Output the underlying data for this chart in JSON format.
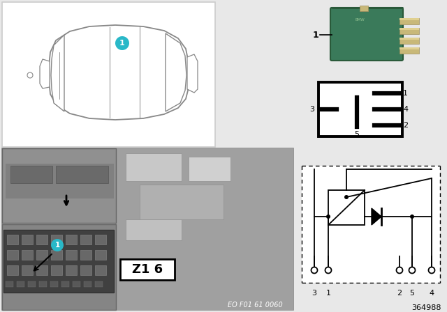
{
  "bg_color": "#e8e8e8",
  "part_number": "364988",
  "eo_number": "EO F01 61 0060",
  "teal_color": "#29b8c8",
  "relay_green": "#3a7a5a",
  "relay_green_dark": "#2a5a3a",
  "relay_green_light": "#4a9a6a",
  "pin_border_color": "#111111",
  "photo_bg": "#b0b0b0",
  "photo_dark": "#787878",
  "photo_darker": "#585858",
  "interior_photo_bg": "#909090",
  "fuse_box_bg": "#404040",
  "fuse_cell_color": "#606060",
  "fuse_cell_ec": "#808080",
  "white": "#ffffff",
  "black": "#000000",
  "car_line": "#888888",
  "car_bg": "#ffffff",
  "top_left_border": "#cccccc",
  "bottom_photo_border": "#888888"
}
